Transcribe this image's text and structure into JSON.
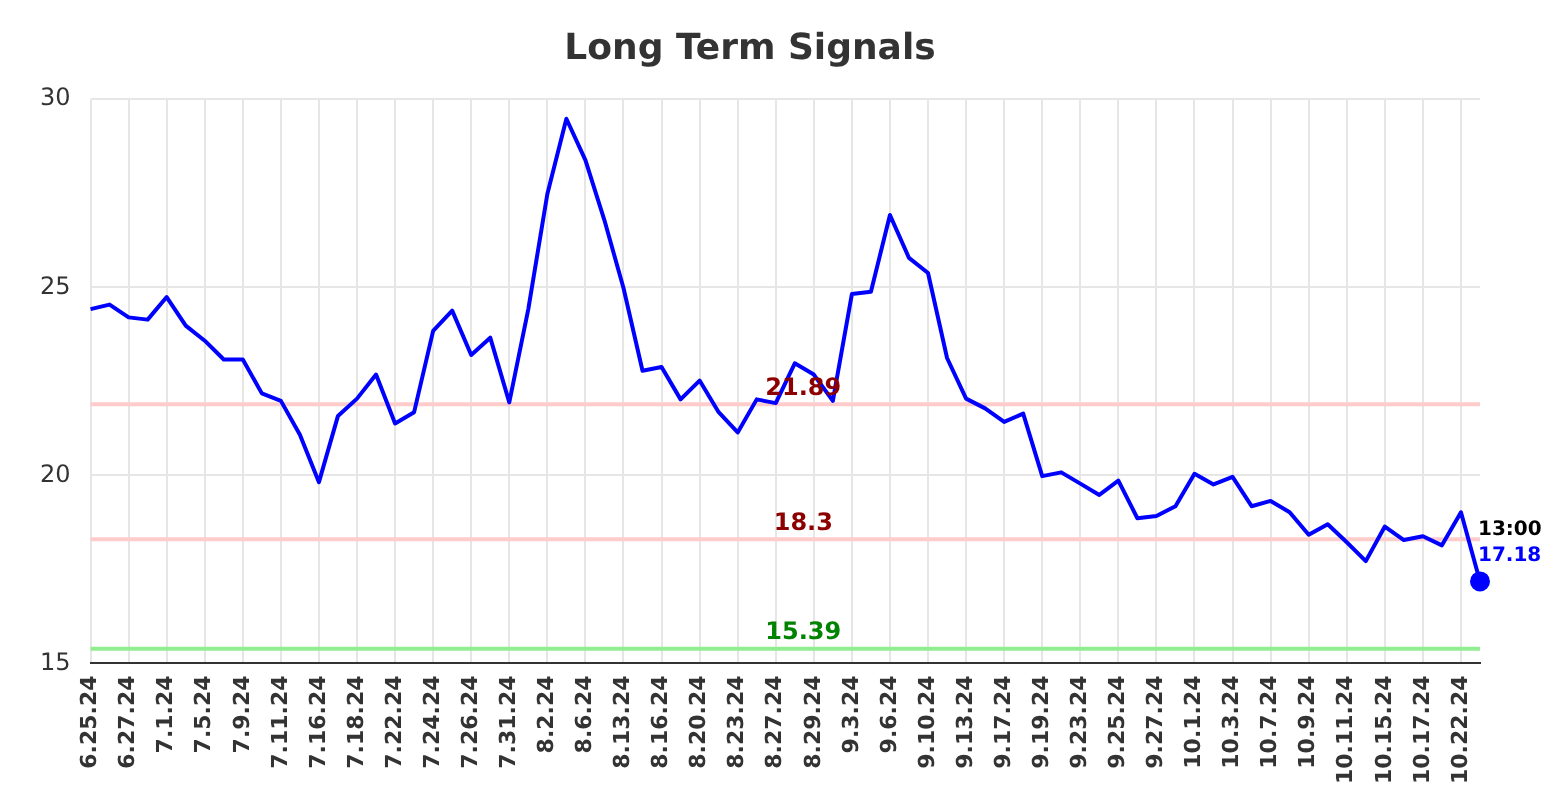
{
  "chart_data": {
    "type": "line",
    "title": "Long Term Signals",
    "categories": [
      "6.25.24",
      null,
      "6.27.24",
      null,
      "7.1.24",
      null,
      "7.5.24",
      null,
      "7.9.24",
      null,
      "7.11.24",
      null,
      "7.16.24",
      null,
      "7.18.24",
      null,
      "7.22.24",
      null,
      "7.24.24",
      null,
      "7.26.24",
      null,
      "7.31.24",
      null,
      "8.2.24",
      null,
      "8.6.24",
      null,
      "8.13.24",
      null,
      "8.16.24",
      null,
      "8.20.24",
      null,
      "8.23.24",
      null,
      "8.27.24",
      null,
      "8.29.24",
      null,
      "9.3.24",
      null,
      "9.6.24",
      null,
      "9.10.24",
      null,
      "9.13.24",
      null,
      "9.17.24",
      null,
      "9.19.24",
      null,
      "9.23.24",
      null,
      "9.25.24",
      null,
      "9.27.24",
      null,
      "10.1.24",
      null,
      "10.3.24",
      null,
      "10.7.24",
      null,
      "10.9.24",
      null,
      "10.11.24",
      null,
      "10.15.24",
      null,
      "10.17.24",
      null,
      "10.22.24",
      null
    ],
    "series": [
      {
        "color": "#0000ff",
        "values": [
          24.42,
          24.54,
          24.2,
          24.14,
          24.74,
          23.98,
          23.58,
          23.08,
          23.08,
          22.18,
          21.98,
          21.08,
          19.82,
          21.58,
          22.04,
          22.68,
          21.38,
          21.68,
          23.84,
          24.38,
          23.2,
          23.66,
          21.94,
          24.42,
          27.48,
          29.48,
          28.38,
          26.78,
          24.98,
          22.78,
          22.88,
          22.02,
          22.52,
          21.68,
          21.14,
          22.02,
          21.92,
          22.98,
          22.68,
          21.98,
          24.82,
          24.88,
          26.92,
          25.78,
          25.38,
          23.12,
          22.04,
          21.78,
          21.42,
          21.64,
          19.98,
          20.08,
          19.78,
          19.48,
          19.86,
          18.86,
          18.92,
          19.18,
          20.04,
          19.76,
          19.96,
          19.18,
          19.32,
          19.02,
          18.42,
          18.7,
          18.22,
          17.72,
          18.64,
          18.28,
          18.38,
          18.14,
          19.02,
          17.18
        ],
        "value_labels": [
          null,
          null,
          null,
          null,
          null,
          null,
          null,
          null,
          null,
          null,
          null,
          null,
          null,
          null,
          null,
          null,
          null,
          null,
          null,
          null,
          null,
          null,
          null,
          null,
          null,
          null,
          null,
          null,
          null,
          null,
          null,
          null,
          null,
          null,
          null,
          null,
          null,
          null,
          null,
          null,
          null,
          null,
          null,
          null,
          null,
          null,
          null,
          null,
          null,
          null,
          null,
          null,
          null,
          null,
          null,
          null,
          null,
          null,
          null,
          null,
          null,
          null,
          null,
          null,
          null,
          null,
          null,
          null,
          null,
          null,
          null,
          null,
          null,
          "17.18"
        ]
      }
    ],
    "ylim": [
      15,
      30
    ],
    "yticks": [
      15,
      20,
      25,
      30
    ],
    "grid": true,
    "legend": false,
    "marker": "none",
    "line_style": "solid",
    "ref_lines": [
      {
        "axis": "y",
        "value": 21.89,
        "label": "21.89",
        "color": "#ffcccc"
      },
      {
        "axis": "y",
        "value": 18.3,
        "label": "18.3",
        "color": "#ffcccc"
      },
      {
        "axis": "y",
        "value": 15.39,
        "label": "15.39",
        "color": "#90ee90"
      }
    ],
    "annotations": [
      "13:00"
    ]
  }
}
